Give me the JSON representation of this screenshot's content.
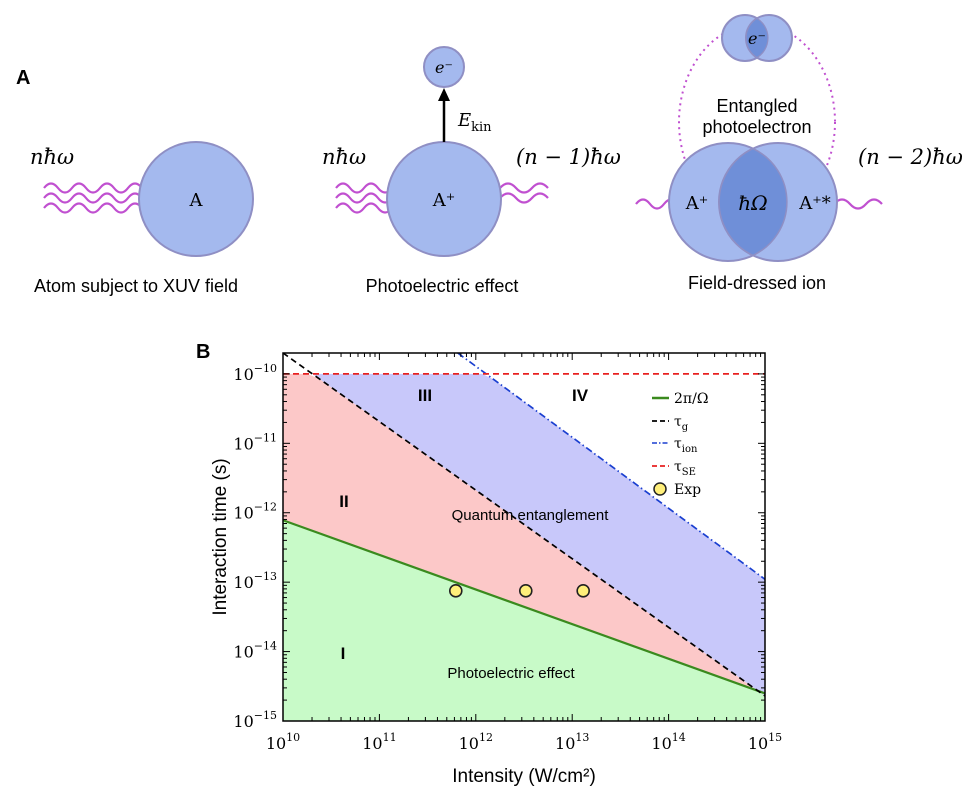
{
  "panel_a": {
    "panel_label": "A",
    "scene1": {
      "field_label": "nħω",
      "atom_label": "A",
      "caption": "Atom subject to XUV field"
    },
    "scene2": {
      "field_in_label": "nħω",
      "field_out_label": "(n − 1)ħω",
      "ion_label": "A⁺",
      "electron_label": "e⁻",
      "energy_label": "E",
      "energy_sub": "kin",
      "caption": "Photoelectric effect"
    },
    "scene3": {
      "field_out_label": "(n − 2)ħω",
      "left_label": "A⁺",
      "center_label": "ħΩ",
      "right_label": "A⁺*",
      "electron_label": "e⁻",
      "entangled_label_line1": "Entangled",
      "entangled_label_line2": "photoelectron",
      "caption": "Field-dressed ion"
    },
    "colors": {
      "sphere_fill": "#a4b9ee",
      "sphere_stroke": "#8f8fc4",
      "overlap_fill": "#6f8fd8",
      "wave": "#c050d0"
    }
  },
  "chart_data": {
    "panel_label": "B",
    "type": "line",
    "xlabel": "Intensity (W/cm²)",
    "ylabel": "Interaction time (s)",
    "x_scale": "log",
    "y_scale": "log",
    "xlim": [
      10000000000.0,
      1000000000000000.0
    ],
    "ylim": [
      1e-15,
      2e-10
    ],
    "x_ticks": [
      {
        "value": 10000000000.0,
        "base": "10",
        "exp": "10"
      },
      {
        "value": 100000000000.0,
        "base": "10",
        "exp": "11"
      },
      {
        "value": 1000000000000.0,
        "base": "10",
        "exp": "12"
      },
      {
        "value": 10000000000000.0,
        "base": "10",
        "exp": "13"
      },
      {
        "value": 100000000000000.0,
        "base": "10",
        "exp": "14"
      },
      {
        "value": 1000000000000000.0,
        "base": "10",
        "exp": "15"
      }
    ],
    "y_ticks": [
      {
        "value": 1e-15,
        "base": "10",
        "exp": "−15"
      },
      {
        "value": 1e-14,
        "base": "10",
        "exp": "−14"
      },
      {
        "value": 1e-13,
        "base": "10",
        "exp": "−13"
      },
      {
        "value": 1e-12,
        "base": "10",
        "exp": "−12"
      },
      {
        "value": 1e-11,
        "base": "10",
        "exp": "−11"
      },
      {
        "value": 1e-10,
        "base": "10",
        "exp": "−10"
      }
    ],
    "series": [
      {
        "name": "2π/Ω",
        "style": "solid",
        "color": "#3a8a1e",
        "x": [
          10000000000.0,
          1000000000000000.0
        ],
        "y": [
          7.8e-13,
          2.5e-15
        ]
      },
      {
        "name": "τ_g",
        "style": "dashed",
        "color": "#000000",
        "x": [
          10000000000.0,
          1000000000000000.0
        ],
        "y": [
          2e-10,
          2.3e-15
        ]
      },
      {
        "name": "τ_ion",
        "style": "dashdot",
        "color": "#1a3fd0",
        "x": [
          650000000000.0,
          1000000000000000.0
        ],
        "y": [
          2e-10,
          1.1e-13
        ]
      },
      {
        "name": "τ_SE",
        "style": "dashed",
        "color": "#e82020",
        "x": [
          10000000000.0,
          1000000000000000.0
        ],
        "y": [
          1e-10,
          1e-10
        ]
      }
    ],
    "scatter": {
      "name": "Exp",
      "fill": "#ffef7a",
      "stroke": "#222222",
      "points": [
        {
          "x": 620000000000.0,
          "y": 7.5e-14
        },
        {
          "x": 3300000000000.0,
          "y": 7.5e-14
        },
        {
          "x": 13000000000000.0,
          "y": 7.5e-14
        }
      ]
    },
    "regions": {
      "I": {
        "label": "I",
        "color": "#c8fac8"
      },
      "II": {
        "label": "II",
        "color": "#fcc8c8"
      },
      "III": {
        "label": "III",
        "color": "#c8c8fa"
      },
      "IV": {
        "label": "IV"
      }
    },
    "region_text": {
      "entanglement": "Quantum entanglement",
      "photoelectric": "Photoelectric effect"
    },
    "legend_placement": "top-right",
    "legend": [
      {
        "label": "2π/Ω",
        "base": "2π/Ω",
        "sub": ""
      },
      {
        "label": "τ_g",
        "base": "τ",
        "sub": "g"
      },
      {
        "label": "τ_ion",
        "base": "τ",
        "sub": "ion"
      },
      {
        "label": "τ_SE",
        "base": "τ",
        "sub": "SE"
      },
      {
        "label": "Exp",
        "base": "Exp",
        "sub": ""
      }
    ]
  }
}
